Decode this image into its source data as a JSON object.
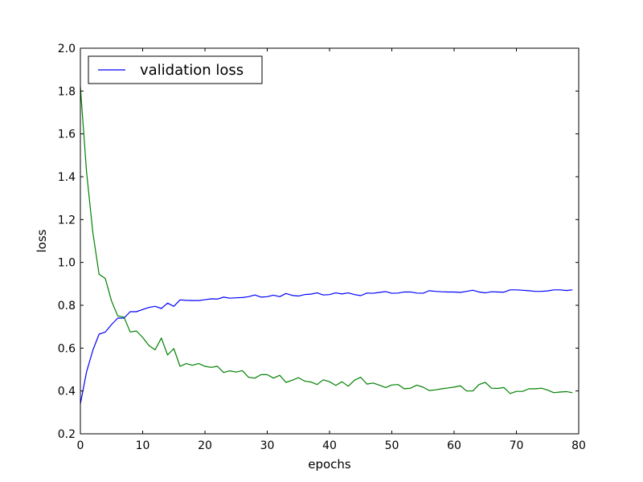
{
  "chart_data": {
    "type": "line",
    "title": "",
    "xlabel": "epochs",
    "ylabel": "loss",
    "xlim": [
      0,
      80
    ],
    "ylim": [
      0.2,
      2.0
    ],
    "xticks": [
      "0",
      "10",
      "20",
      "30",
      "40",
      "50",
      "60",
      "70",
      "80"
    ],
    "yticks": [
      "0.2",
      "0.4",
      "0.6",
      "0.8",
      "1.0",
      "1.2",
      "1.4",
      "1.6",
      "1.8",
      "2.0"
    ],
    "grid": false,
    "legend": {
      "position": "upper-left",
      "entries": [
        "validation loss"
      ]
    },
    "series": [
      {
        "name": "validation loss",
        "color": "#0000ff",
        "x": [
          0,
          1,
          2,
          3,
          4,
          5,
          6,
          7,
          8,
          9,
          10,
          11,
          12,
          13,
          14,
          15,
          16,
          17,
          18,
          19,
          20,
          21,
          22,
          23,
          24,
          25,
          26,
          27,
          28,
          29,
          30,
          31,
          32,
          33,
          34,
          35,
          36,
          37,
          38,
          39,
          40,
          41,
          42,
          43,
          44,
          45,
          46,
          47,
          48,
          49,
          50,
          51,
          52,
          53,
          54,
          55,
          56,
          57,
          58,
          59,
          60,
          61,
          62,
          63,
          64,
          65,
          66,
          67,
          68,
          69,
          70,
          71,
          72,
          73,
          74,
          75,
          76,
          77,
          78,
          79
        ],
        "y": [
          0.34,
          0.49,
          0.59,
          0.665,
          0.675,
          0.71,
          0.74,
          0.74,
          0.77,
          0.77,
          0.78,
          0.79,
          0.795,
          0.785,
          0.81,
          0.795,
          0.825,
          0.823,
          0.822,
          0.822,
          0.826,
          0.83,
          0.829,
          0.838,
          0.833,
          0.835,
          0.836,
          0.84,
          0.848,
          0.838,
          0.84,
          0.847,
          0.84,
          0.855,
          0.846,
          0.843,
          0.85,
          0.852,
          0.858,
          0.848,
          0.85,
          0.858,
          0.853,
          0.858,
          0.85,
          0.845,
          0.857,
          0.856,
          0.86,
          0.864,
          0.856,
          0.857,
          0.862,
          0.862,
          0.857,
          0.856,
          0.868,
          0.865,
          0.863,
          0.862,
          0.862,
          0.86,
          0.865,
          0.87,
          0.862,
          0.858,
          0.863,
          0.862,
          0.861,
          0.872,
          0.872,
          0.87,
          0.868,
          0.865,
          0.865,
          0.867,
          0.872,
          0.872,
          0.869,
          0.872
        ]
      },
      {
        "name": "",
        "color": "#008000",
        "x": [
          0,
          1,
          2,
          3,
          4,
          5,
          6,
          7,
          8,
          9,
          10,
          11,
          12,
          13,
          14,
          15,
          16,
          17,
          18,
          19,
          20,
          21,
          22,
          23,
          24,
          25,
          26,
          27,
          28,
          29,
          30,
          31,
          32,
          33,
          34,
          35,
          36,
          37,
          38,
          39,
          40,
          41,
          42,
          43,
          44,
          45,
          46,
          47,
          48,
          49,
          50,
          51,
          52,
          53,
          54,
          55,
          56,
          57,
          58,
          59,
          60,
          61,
          62,
          63,
          64,
          65,
          66,
          67,
          68,
          69,
          70,
          71,
          72,
          73,
          74,
          75,
          76,
          77,
          78,
          79
        ],
        "y": [
          1.82,
          1.42,
          1.14,
          0.945,
          0.925,
          0.82,
          0.75,
          0.745,
          0.675,
          0.68,
          0.65,
          0.612,
          0.592,
          0.647,
          0.568,
          0.598,
          0.515,
          0.528,
          0.52,
          0.528,
          0.515,
          0.51,
          0.515,
          0.486,
          0.494,
          0.488,
          0.495,
          0.464,
          0.46,
          0.476,
          0.476,
          0.46,
          0.473,
          0.44,
          0.45,
          0.462,
          0.446,
          0.442,
          0.43,
          0.452,
          0.443,
          0.426,
          0.443,
          0.422,
          0.45,
          0.464,
          0.432,
          0.437,
          0.427,
          0.416,
          0.428,
          0.43,
          0.41,
          0.413,
          0.427,
          0.418,
          0.402,
          0.405,
          0.41,
          0.414,
          0.418,
          0.424,
          0.4,
          0.4,
          0.43,
          0.44,
          0.413,
          0.412,
          0.416,
          0.388,
          0.398,
          0.398,
          0.41,
          0.41,
          0.413,
          0.404,
          0.392,
          0.395,
          0.397,
          0.392
        ]
      }
    ]
  }
}
